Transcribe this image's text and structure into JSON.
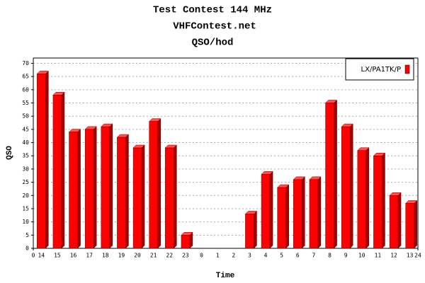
{
  "chart_data": {
    "type": "bar",
    "title": "Test Contest 144 MHz",
    "subtitle": "VHFContest.net",
    "subtitle2": "QSO/hod",
    "x_label": "Time",
    "y_label": "QSO",
    "categories": [
      "14",
      "15",
      "16",
      "17",
      "18",
      "19",
      "20",
      "21",
      "22",
      "23",
      "0",
      "1",
      "2",
      "3",
      "4",
      "5",
      "6",
      "7",
      "8",
      "9",
      "10",
      "11",
      "12",
      "13"
    ],
    "series": [
      {
        "name": "LX/PA1TK/P",
        "color": "#ff0000",
        "values": [
          66,
          58,
          44,
          45,
          46,
          42,
          38,
          48,
          38,
          5,
          0,
          0,
          0,
          13,
          28,
          23,
          26,
          26,
          55,
          46,
          37,
          35,
          20,
          17
        ]
      }
    ],
    "xlim": [
      0,
      24
    ],
    "xticks": [
      0,
      24
    ],
    "ylim": [
      0,
      72
    ],
    "yticks": [
      0,
      5,
      10,
      15,
      20,
      25,
      30,
      35,
      40,
      45,
      50,
      55,
      60,
      65,
      70
    ],
    "grid": true,
    "legend": "top-right"
  }
}
